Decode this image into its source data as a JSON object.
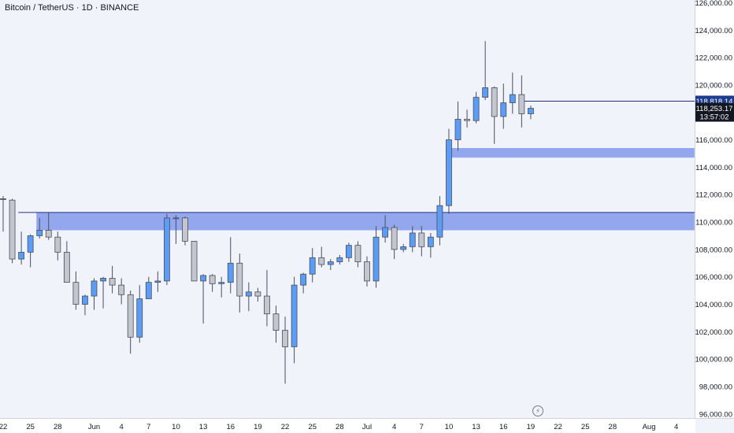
{
  "header": {
    "title": "Bitcoin / TetherUS · 1D · BINANCE"
  },
  "price_tags": {
    "line_price": "118,818.14",
    "last_price": "118,253.17",
    "countdown": "13:57:02"
  },
  "colors": {
    "background": "#f0f3fa",
    "bull": "#5b9cf6",
    "bear": "#c3c6cc",
    "zone": "#93a7ef",
    "line": "#2a2e7a",
    "tag_blue": "#1e3c8f",
    "tag_dark": "#131722"
  },
  "chart_data": {
    "type": "candlestick",
    "title": "Bitcoin / TetherUS · 1D · BINANCE",
    "y_ticks": [
      96000,
      98000,
      100000,
      102000,
      104000,
      106000,
      108000,
      110000,
      112000,
      114000,
      116000,
      118000,
      120000,
      122000,
      124000,
      126000
    ],
    "y_tick_labels": [
      "96,000.00",
      "98,000.00",
      "100,000.00",
      "102,000.00",
      "104,000.00",
      "106,000.00",
      "108,000.00",
      "110,000.00",
      "112,000.00",
      "114,000.00",
      "116,000.00",
      "118,000.00",
      "120,000.00",
      "122,000.00",
      "124,000.00",
      "126,000.00"
    ],
    "ylim": [
      95700,
      126200
    ],
    "x_tick_labels": [
      {
        "label": "22",
        "date": "2025-05-22"
      },
      {
        "label": "25",
        "date": "2025-05-25"
      },
      {
        "label": "28",
        "date": "2025-05-28"
      },
      {
        "label": "Jun",
        "date": "2025-06-01"
      },
      {
        "label": "4",
        "date": "2025-06-04"
      },
      {
        "label": "7",
        "date": "2025-06-07"
      },
      {
        "label": "10",
        "date": "2025-06-10"
      },
      {
        "label": "13",
        "date": "2025-06-13"
      },
      {
        "label": "16",
        "date": "2025-06-16"
      },
      {
        "label": "19",
        "date": "2025-06-19"
      },
      {
        "label": "22",
        "date": "2025-06-22"
      },
      {
        "label": "25",
        "date": "2025-06-25"
      },
      {
        "label": "28",
        "date": "2025-06-28"
      },
      {
        "label": "Jul",
        "date": "2025-07-01"
      },
      {
        "label": "4",
        "date": "2025-07-04"
      },
      {
        "label": "7",
        "date": "2025-07-07"
      },
      {
        "label": "10",
        "date": "2025-07-10"
      },
      {
        "label": "13",
        "date": "2025-07-13"
      },
      {
        "label": "16",
        "date": "2025-07-16"
      },
      {
        "label": "19",
        "date": "2025-07-19"
      },
      {
        "label": "22",
        "date": "2025-07-22"
      },
      {
        "label": "25",
        "date": "2025-07-25"
      },
      {
        "label": "28",
        "date": "2025-07-28"
      },
      {
        "label": "Aug",
        "date": "2025-08-01"
      },
      {
        "label": "4",
        "date": "2025-08-04"
      }
    ],
    "x_range": [
      "2025-05-22",
      "2025-08-06"
    ],
    "candles": [
      {
        "date": "2025-05-22",
        "open": 111700,
        "high": 111900,
        "low": 109300,
        "close": 111700
      },
      {
        "date": "2025-05-23",
        "open": 111600,
        "high": 111700,
        "low": 107000,
        "close": 107300
      },
      {
        "date": "2025-05-24",
        "open": 107300,
        "high": 109300,
        "low": 106900,
        "close": 107800
      },
      {
        "date": "2025-05-25",
        "open": 107800,
        "high": 109100,
        "low": 106700,
        "close": 109000
      },
      {
        "date": "2025-05-26",
        "open": 109000,
        "high": 110300,
        "low": 108800,
        "close": 109400
      },
      {
        "date": "2025-05-27",
        "open": 109400,
        "high": 110700,
        "low": 108700,
        "close": 108900
      },
      {
        "date": "2025-05-28",
        "open": 108900,
        "high": 109300,
        "low": 107200,
        "close": 107800
      },
      {
        "date": "2025-05-29",
        "open": 107800,
        "high": 108600,
        "low": 105600,
        "close": 105600
      },
      {
        "date": "2025-05-30",
        "open": 105600,
        "high": 106400,
        "low": 103600,
        "close": 104000
      },
      {
        "date": "2025-05-31",
        "open": 104000,
        "high": 104700,
        "low": 103200,
        "close": 104600
      },
      {
        "date": "2025-06-01",
        "open": 104600,
        "high": 105900,
        "low": 103600,
        "close": 105700
      },
      {
        "date": "2025-06-02",
        "open": 105700,
        "high": 106000,
        "low": 103700,
        "close": 105900
      },
      {
        "date": "2025-06-03",
        "open": 105900,
        "high": 106800,
        "low": 104800,
        "close": 105400
      },
      {
        "date": "2025-06-04",
        "open": 105400,
        "high": 105900,
        "low": 104000,
        "close": 104700
      },
      {
        "date": "2025-06-05",
        "open": 104700,
        "high": 105000,
        "low": 100400,
        "close": 101600
      },
      {
        "date": "2025-06-06",
        "open": 101600,
        "high": 105400,
        "low": 101200,
        "close": 104400
      },
      {
        "date": "2025-06-07",
        "open": 104400,
        "high": 106000,
        "low": 104400,
        "close": 105600
      },
      {
        "date": "2025-06-08",
        "open": 105600,
        "high": 106400,
        "low": 104900,
        "close": 105700
      },
      {
        "date": "2025-06-09",
        "open": 105700,
        "high": 110600,
        "low": 105400,
        "close": 110300
      },
      {
        "date": "2025-06-10",
        "open": 110300,
        "high": 110500,
        "low": 108400,
        "close": 110300
      },
      {
        "date": "2025-06-11",
        "open": 110300,
        "high": 110400,
        "low": 108300,
        "close": 108600
      },
      {
        "date": "2025-06-12",
        "open": 108600,
        "high": 108600,
        "low": 105800,
        "close": 105700
      },
      {
        "date": "2025-06-13",
        "open": 105700,
        "high": 106200,
        "low": 102600,
        "close": 106100
      },
      {
        "date": "2025-06-14",
        "open": 106100,
        "high": 106200,
        "low": 104900,
        "close": 105500
      },
      {
        "date": "2025-06-15",
        "open": 105500,
        "high": 106000,
        "low": 104500,
        "close": 105600
      },
      {
        "date": "2025-06-16",
        "open": 105600,
        "high": 108900,
        "low": 104800,
        "close": 107000
      },
      {
        "date": "2025-06-17",
        "open": 107000,
        "high": 107700,
        "low": 103400,
        "close": 104600
      },
      {
        "date": "2025-06-18",
        "open": 104600,
        "high": 105600,
        "low": 103500,
        "close": 104900
      },
      {
        "date": "2025-06-19",
        "open": 104900,
        "high": 105200,
        "low": 104200,
        "close": 104600
      },
      {
        "date": "2025-06-20",
        "open": 104600,
        "high": 106500,
        "low": 102400,
        "close": 103300
      },
      {
        "date": "2025-06-21",
        "open": 103300,
        "high": 103900,
        "low": 101200,
        "close": 102100
      },
      {
        "date": "2025-06-22",
        "open": 102100,
        "high": 103100,
        "low": 98200,
        "close": 100900
      },
      {
        "date": "2025-06-23",
        "open": 100900,
        "high": 106000,
        "low": 99700,
        "close": 105400
      },
      {
        "date": "2025-06-24",
        "open": 105400,
        "high": 106300,
        "low": 104800,
        "close": 106200
      },
      {
        "date": "2025-06-25",
        "open": 106200,
        "high": 108100,
        "low": 105600,
        "close": 107400
      },
      {
        "date": "2025-06-26",
        "open": 107400,
        "high": 108200,
        "low": 106700,
        "close": 106900
      },
      {
        "date": "2025-06-27",
        "open": 106900,
        "high": 107300,
        "low": 106500,
        "close": 107100
      },
      {
        "date": "2025-06-28",
        "open": 107100,
        "high": 107600,
        "low": 106900,
        "close": 107400
      },
      {
        "date": "2025-06-29",
        "open": 107400,
        "high": 108500,
        "low": 107100,
        "close": 108300
      },
      {
        "date": "2025-06-30",
        "open": 108300,
        "high": 108600,
        "low": 106700,
        "close": 107100
      },
      {
        "date": "2025-07-01",
        "open": 107100,
        "high": 107500,
        "low": 105300,
        "close": 105700
      },
      {
        "date": "2025-07-02",
        "open": 105700,
        "high": 109700,
        "low": 105200,
        "close": 108900
      },
      {
        "date": "2025-07-03",
        "open": 108900,
        "high": 110500,
        "low": 108500,
        "close": 109600
      },
      {
        "date": "2025-07-04",
        "open": 109600,
        "high": 109800,
        "low": 107300,
        "close": 108000
      },
      {
        "date": "2025-07-05",
        "open": 108000,
        "high": 108400,
        "low": 107800,
        "close": 108200
      },
      {
        "date": "2025-07-06",
        "open": 108200,
        "high": 109700,
        "low": 107800,
        "close": 109200
      },
      {
        "date": "2025-07-07",
        "open": 109200,
        "high": 109700,
        "low": 107500,
        "close": 108200
      },
      {
        "date": "2025-07-08",
        "open": 108200,
        "high": 109200,
        "low": 107400,
        "close": 108900
      },
      {
        "date": "2025-07-09",
        "open": 108900,
        "high": 111900,
        "low": 108300,
        "close": 111200
      },
      {
        "date": "2025-07-10",
        "open": 111200,
        "high": 116800,
        "low": 110600,
        "close": 116000
      },
      {
        "date": "2025-07-11",
        "open": 116000,
        "high": 118800,
        "low": 115200,
        "close": 117500
      },
      {
        "date": "2025-07-12",
        "open": 117500,
        "high": 118200,
        "low": 116900,
        "close": 117400
      },
      {
        "date": "2025-07-13",
        "open": 117400,
        "high": 119500,
        "low": 117200,
        "close": 119100
      },
      {
        "date": "2025-07-14",
        "open": 119100,
        "high": 123200,
        "low": 118900,
        "close": 119800
      },
      {
        "date": "2025-07-15",
        "open": 119800,
        "high": 119900,
        "low": 115700,
        "close": 117700
      },
      {
        "date": "2025-07-16",
        "open": 117700,
        "high": 120100,
        "low": 116800,
        "close": 118700
      },
      {
        "date": "2025-07-17",
        "open": 118700,
        "high": 120900,
        "low": 117900,
        "close": 119300
      },
      {
        "date": "2025-07-18",
        "open": 119300,
        "high": 120700,
        "low": 116900,
        "close": 117900
      },
      {
        "date": "2025-07-19",
        "open": 117900,
        "high": 118500,
        "low": 117500,
        "close": 118300
      }
    ],
    "zones": [
      {
        "y_from": 109400,
        "y_to": 110700,
        "date_from": "2025-05-26",
        "date_to": "2025-08-06"
      },
      {
        "y_from": 114700,
        "y_to": 115400,
        "date_from": "2025-07-10",
        "date_to": "2025-08-06"
      }
    ],
    "horizontal_lines": [
      {
        "y": 110700,
        "date_from": "2025-05-26",
        "date_to": "2025-08-06"
      },
      {
        "y": 118818.14,
        "date_from": "2025-07-18",
        "date_to": "2025-08-06"
      }
    ]
  }
}
